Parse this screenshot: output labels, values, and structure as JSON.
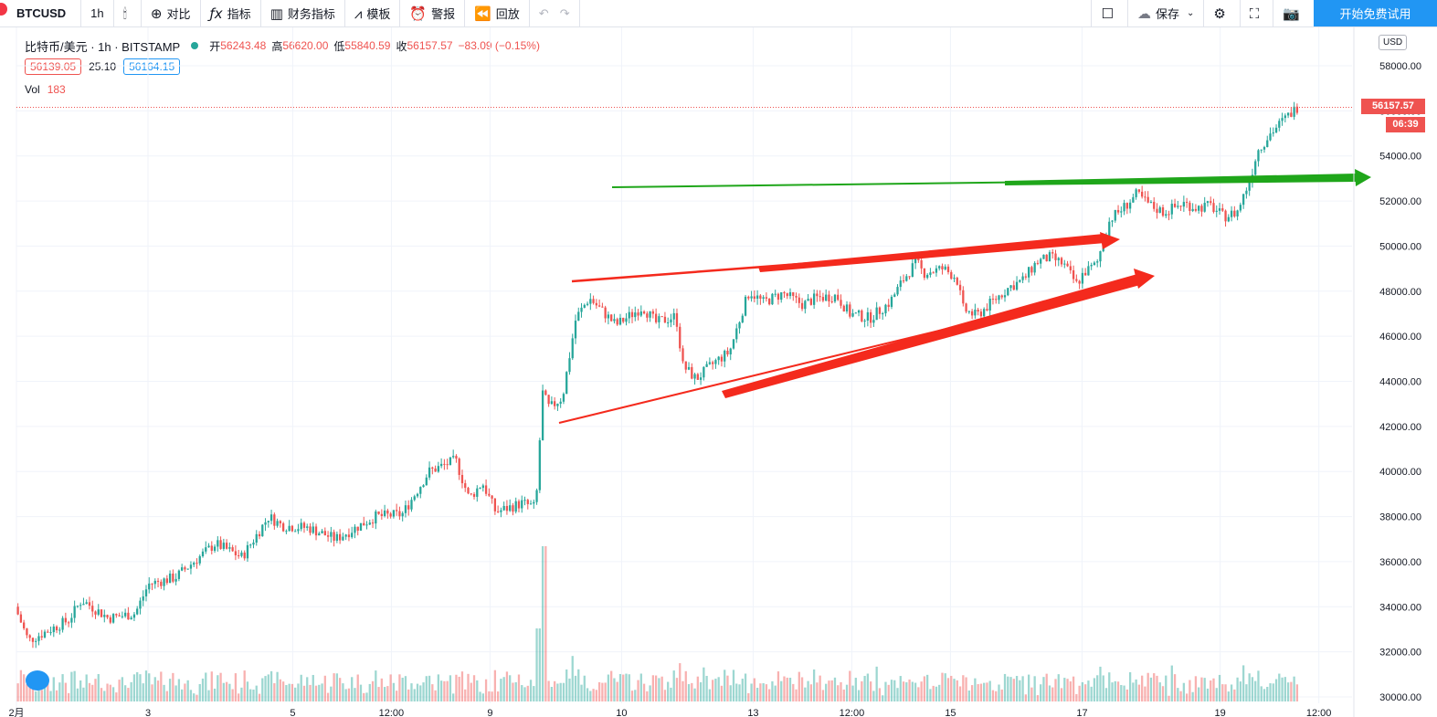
{
  "toolbar": {
    "symbol": "BTCUSD",
    "interval": "1h",
    "compare": "对比",
    "indicators": "指标",
    "financials": "财务指标",
    "templates": "模板",
    "alert": "警报",
    "replay": "回放",
    "save": "保存",
    "trial": "开始免费试用"
  },
  "icons": {
    "candles": "candlestick-icon",
    "compare": "plus-circle-icon",
    "indicators": "fx-icon",
    "financials": "bar-chart-icon",
    "templates": "template-icon",
    "alert": "alarm-icon",
    "replay": "rewind-icon",
    "undo": "undo-icon",
    "redo": "redo-icon",
    "layout": "square-icon",
    "cloud": "cloud-icon",
    "settings": "gear-icon",
    "fullscreen": "fullscreen-icon",
    "snapshot": "camera-icon"
  },
  "legend": {
    "title": "比特币/美元 · 1h · BITSTAMP",
    "open_key": "开",
    "open": "56243.48",
    "high_key": "高",
    "high": "56620.00",
    "low_key": "低",
    "low": "55840.59",
    "close_key": "收",
    "close": "56157.57",
    "change": "−83.09 (−0.15%)",
    "bid": "56139.05",
    "spread": "25.10",
    "ask": "56164.15",
    "vol_label": "Vol",
    "vol_value": "183"
  },
  "currency": "USD",
  "last_price": "56157.57",
  "countdown": "06:39",
  "colors": {
    "up": "#26a69a",
    "down": "#ef5350",
    "accent": "#2196f3",
    "annot_red": "#f42a1d",
    "annot_green": "#1fa61a"
  },
  "chart_data": {
    "type": "candlestick",
    "y_ticks": [
      "58000.00",
      "56000.00",
      "54000.00",
      "52000.00",
      "50000.00",
      "48000.00",
      "46000.00",
      "44000.00",
      "42000.00",
      "40000.00",
      "38000.00",
      "36000.00",
      "34000.00",
      "32000.00",
      "30000.00"
    ],
    "x_ticks": [
      {
        "label": "2月",
        "t": 0
      },
      {
        "label": "3",
        "t": 0.1
      },
      {
        "label": "5",
        "t": 0.21
      },
      {
        "label": "12:00",
        "t": 0.285
      },
      {
        "label": "9",
        "t": 0.36
      },
      {
        "label": "10",
        "t": 0.46
      },
      {
        "label": "13",
        "t": 0.56
      },
      {
        "label": "12:00",
        "t": 0.635
      },
      {
        "label": "15",
        "t": 0.71
      },
      {
        "label": "17",
        "t": 0.81
      },
      {
        "label": "19",
        "t": 0.915
      },
      {
        "label": "12:00",
        "t": 0.99
      }
    ],
    "ylim": [
      30000,
      58000
    ],
    "keypoints": [
      [
        0,
        34000
      ],
      [
        0.01,
        32500
      ],
      [
        0.04,
        33400
      ],
      [
        0.05,
        34300
      ],
      [
        0.07,
        33500
      ],
      [
        0.09,
        33700
      ],
      [
        0.1,
        35000
      ],
      [
        0.12,
        35300
      ],
      [
        0.15,
        36800
      ],
      [
        0.17,
        36200
      ],
      [
        0.19,
        38000
      ],
      [
        0.2,
        37600
      ],
      [
        0.22,
        37500
      ],
      [
        0.24,
        37000
      ],
      [
        0.27,
        38000
      ],
      [
        0.29,
        38100
      ],
      [
        0.31,
        40000
      ],
      [
        0.33,
        40500
      ],
      [
        0.34,
        38800
      ],
      [
        0.35,
        39500
      ],
      [
        0.36,
        38200
      ],
      [
        0.38,
        38600
      ],
      [
        0.39,
        38400
      ],
      [
        0.395,
        43500
      ],
      [
        0.4,
        42800
      ],
      [
        0.41,
        43300
      ],
      [
        0.42,
        46800
      ],
      [
        0.43,
        47700
      ],
      [
        0.44,
        47100
      ],
      [
        0.45,
        46500
      ],
      [
        0.47,
        47300
      ],
      [
        0.48,
        46600
      ],
      [
        0.495,
        46900
      ],
      [
        0.5,
        44700
      ],
      [
        0.51,
        44100
      ],
      [
        0.525,
        44900
      ],
      [
        0.535,
        45300
      ],
      [
        0.545,
        47200
      ],
      [
        0.55,
        48000
      ],
      [
        0.56,
        47500
      ],
      [
        0.575,
        47900
      ],
      [
        0.59,
        47400
      ],
      [
        0.6,
        47700
      ],
      [
        0.615,
        47800
      ],
      [
        0.625,
        47000
      ],
      [
        0.64,
        46800
      ],
      [
        0.655,
        47500
      ],
      [
        0.665,
        48500
      ],
      [
        0.675,
        49300
      ],
      [
        0.68,
        48800
      ],
      [
        0.695,
        49000
      ],
      [
        0.705,
        48600
      ],
      [
        0.71,
        47200
      ],
      [
        0.72,
        46900
      ],
      [
        0.735,
        47700
      ],
      [
        0.745,
        48200
      ],
      [
        0.755,
        48500
      ],
      [
        0.765,
        49300
      ],
      [
        0.775,
        49500
      ],
      [
        0.785,
        49200
      ],
      [
        0.795,
        48300
      ],
      [
        0.8,
        48800
      ],
      [
        0.81,
        49200
      ],
      [
        0.815,
        50300
      ],
      [
        0.82,
        51200
      ],
      [
        0.83,
        51700
      ],
      [
        0.84,
        52300
      ],
      [
        0.85,
        51800
      ],
      [
        0.86,
        51500
      ],
      [
        0.875,
        51900
      ],
      [
        0.885,
        51700
      ],
      [
        0.895,
        51800
      ],
      [
        0.905,
        51300
      ],
      [
        0.915,
        51500
      ],
      [
        0.925,
        53000
      ],
      [
        0.93,
        54200
      ],
      [
        0.94,
        55000
      ],
      [
        0.95,
        55600
      ],
      [
        0.96,
        56160
      ]
    ]
  }
}
